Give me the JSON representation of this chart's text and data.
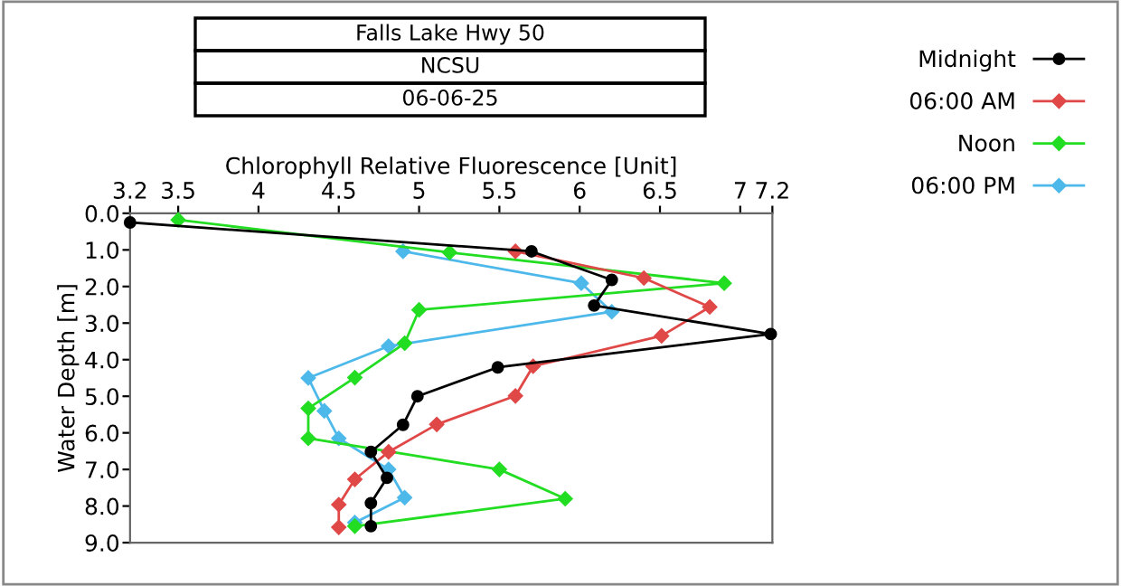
{
  "chart_data": {
    "type": "line",
    "title": "Falls Lake Hwy 50",
    "subtitle": "NCSU",
    "annotations": [
      "06-06-25"
    ],
    "xlabel": "Chlorophyll Relative Fluorescence [Unit]",
    "ylabel": "Water Depth [m]",
    "xlim": [
      3.2,
      7.2
    ],
    "xticks": [
      3.2,
      3.5,
      4,
      4.5,
      5,
      5.5,
      6,
      6.5,
      7,
      7.2
    ],
    "ylim": [
      9,
      0
    ],
    "yticks": [
      {
        "value": 0,
        "label": "0.0"
      },
      {
        "value": 1,
        "label": "1.0"
      },
      {
        "value": 2,
        "label": "2.0"
      },
      {
        "value": 3,
        "label": "3.0"
      },
      {
        "value": 4,
        "label": "4.0"
      },
      {
        "value": 5,
        "label": "5.0"
      },
      {
        "value": 6,
        "label": "6.0"
      },
      {
        "value": 7,
        "label": "7.0"
      },
      {
        "value": 8,
        "label": "8.0"
      },
      {
        "value": 9,
        "label": "9.0"
      }
    ],
    "grid": false,
    "legend": "top right",
    "marker": "diamond",
    "line_style": "solid",
    "series": [
      {
        "name": "Midnight",
        "color": "#000000",
        "marker": "circle",
        "x": [
          3.2,
          5.7,
          6.2,
          6.09,
          7.19,
          5.49,
          4.99,
          4.9,
          4.7,
          4.8,
          4.7,
          4.7
        ],
        "values": [
          0.25,
          1.04,
          1.82,
          2.52,
          3.3,
          4.21,
          5.0,
          5.78,
          6.52,
          7.23,
          7.92,
          8.55
        ]
      },
      {
        "name": "06:00 AM",
        "color": "#e04848",
        "x": [
          5.6,
          6.4,
          6.81,
          6.51,
          5.71,
          5.6,
          5.11,
          4.81,
          4.6,
          4.5,
          4.5
        ],
        "values": [
          1.04,
          1.77,
          2.56,
          3.35,
          4.18,
          4.99,
          5.77,
          6.52,
          7.27,
          7.96,
          8.58
        ]
      },
      {
        "name": "Noon",
        "color": "#22dd22",
        "x": [
          3.5,
          5.19,
          6.9,
          5.0,
          4.91,
          4.6,
          4.31,
          4.31,
          5.5,
          5.91,
          4.6
        ],
        "values": [
          0.18,
          1.07,
          1.91,
          2.64,
          3.55,
          4.49,
          5.33,
          6.15,
          7.0,
          7.8,
          8.55
        ]
      },
      {
        "name": "06:00 PM",
        "color": "#4db8ea",
        "x": [
          4.9,
          6.01,
          6.2,
          4.81,
          4.31,
          4.41,
          4.5,
          4.81,
          4.91,
          4.6
        ],
        "values": [
          1.04,
          1.91,
          2.69,
          3.63,
          4.5,
          5.4,
          6.15,
          7.0,
          7.77,
          8.45
        ]
      }
    ]
  }
}
